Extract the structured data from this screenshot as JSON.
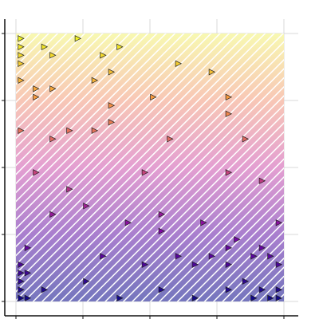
{
  "chart_data": {
    "type": "scatter",
    "title": "",
    "xlabel": "",
    "ylabel": "",
    "xlim": [
      0,
      16
    ],
    "ylim": [
      0,
      16
    ],
    "grid": true,
    "x_ticks_count": 5,
    "y_ticks_count": 5,
    "fill": {
      "pattern": "diagonal-hatch",
      "gradient_top": "#f5f587",
      "gradient_upper": "#f4a98f",
      "gradient_mid": "#d56cb9",
      "gradient_low": "#7b3ab4",
      "gradient_bottom": "#2b2d9a"
    },
    "marker": {
      "shape": "triangle-right",
      "colormap": "plasma",
      "edge": "#222222"
    },
    "points": [
      {
        "x": 0.3,
        "y": 15.7
      },
      {
        "x": 0.3,
        "y": 15.2
      },
      {
        "x": 0.3,
        "y": 14.7
      },
      {
        "x": 0.3,
        "y": 14.2
      },
      {
        "x": 1.7,
        "y": 15.2
      },
      {
        "x": 2.2,
        "y": 14.7
      },
      {
        "x": 3.7,
        "y": 15.7
      },
      {
        "x": 5.2,
        "y": 14.7
      },
      {
        "x": 6.2,
        "y": 15.2
      },
      {
        "x": 5.7,
        "y": 13.7
      },
      {
        "x": 4.7,
        "y": 13.2
      },
      {
        "x": 9.7,
        "y": 14.2
      },
      {
        "x": 11.7,
        "y": 13.7
      },
      {
        "x": 0.3,
        "y": 13.2
      },
      {
        "x": 1.2,
        "y": 12.7
      },
      {
        "x": 2.2,
        "y": 12.7
      },
      {
        "x": 1.2,
        "y": 12.2
      },
      {
        "x": 8.2,
        "y": 12.2
      },
      {
        "x": 12.7,
        "y": 12.2
      },
      {
        "x": 5.7,
        "y": 11.7
      },
      {
        "x": 12.7,
        "y": 11.2
      },
      {
        "x": 5.7,
        "y": 10.7
      },
      {
        "x": 0.3,
        "y": 10.2
      },
      {
        "x": 2.2,
        "y": 9.7
      },
      {
        "x": 3.2,
        "y": 10.2
      },
      {
        "x": 4.7,
        "y": 10.2
      },
      {
        "x": 9.2,
        "y": 9.7
      },
      {
        "x": 13.7,
        "y": 9.7
      },
      {
        "x": 1.2,
        "y": 7.7
      },
      {
        "x": 7.7,
        "y": 7.7
      },
      {
        "x": 12.7,
        "y": 7.7
      },
      {
        "x": 14.7,
        "y": 7.2
      },
      {
        "x": 3.2,
        "y": 6.7
      },
      {
        "x": 4.2,
        "y": 5.7
      },
      {
        "x": 2.2,
        "y": 5.2
      },
      {
        "x": 6.7,
        "y": 4.7
      },
      {
        "x": 8.7,
        "y": 5.2
      },
      {
        "x": 11.2,
        "y": 4.7
      },
      {
        "x": 15.7,
        "y": 4.7
      },
      {
        "x": 8.7,
        "y": 4.2
      },
      {
        "x": 13.2,
        "y": 3.7
      },
      {
        "x": 12.7,
        "y": 3.2
      },
      {
        "x": 14.7,
        "y": 3.2
      },
      {
        "x": 0.7,
        "y": 3.2
      },
      {
        "x": 5.2,
        "y": 2.7
      },
      {
        "x": 9.7,
        "y": 2.7
      },
      {
        "x": 11.7,
        "y": 2.7
      },
      {
        "x": 14.2,
        "y": 2.7
      },
      {
        "x": 15.2,
        "y": 2.7
      },
      {
        "x": 0.3,
        "y": 2.2
      },
      {
        "x": 7.7,
        "y": 2.2
      },
      {
        "x": 10.7,
        "y": 2.2
      },
      {
        "x": 12.7,
        "y": 2.2
      },
      {
        "x": 15.7,
        "y": 2.2
      },
      {
        "x": 0.7,
        "y": 1.7
      },
      {
        "x": 0.3,
        "y": 1.7
      },
      {
        "x": 4.2,
        "y": 1.2
      },
      {
        "x": 13.7,
        "y": 1.2
      },
      {
        "x": 0.3,
        "y": 1.2
      },
      {
        "x": 1.7,
        "y": 0.7
      },
      {
        "x": 0.3,
        "y": 0.7
      },
      {
        "x": 8.7,
        "y": 0.7
      },
      {
        "x": 12.7,
        "y": 0.7
      },
      {
        "x": 14.7,
        "y": 0.7
      },
      {
        "x": 15.7,
        "y": 0.7
      },
      {
        "x": 0.3,
        "y": 0.2
      },
      {
        "x": 0.7,
        "y": 0.2
      },
      {
        "x": 6.2,
        "y": 0.2
      },
      {
        "x": 10.7,
        "y": 0.2
      },
      {
        "x": 14.2,
        "y": 0.2
      },
      {
        "x": 15.2,
        "y": 0.2
      },
      {
        "x": 15.7,
        "y": 0.2
      }
    ]
  }
}
